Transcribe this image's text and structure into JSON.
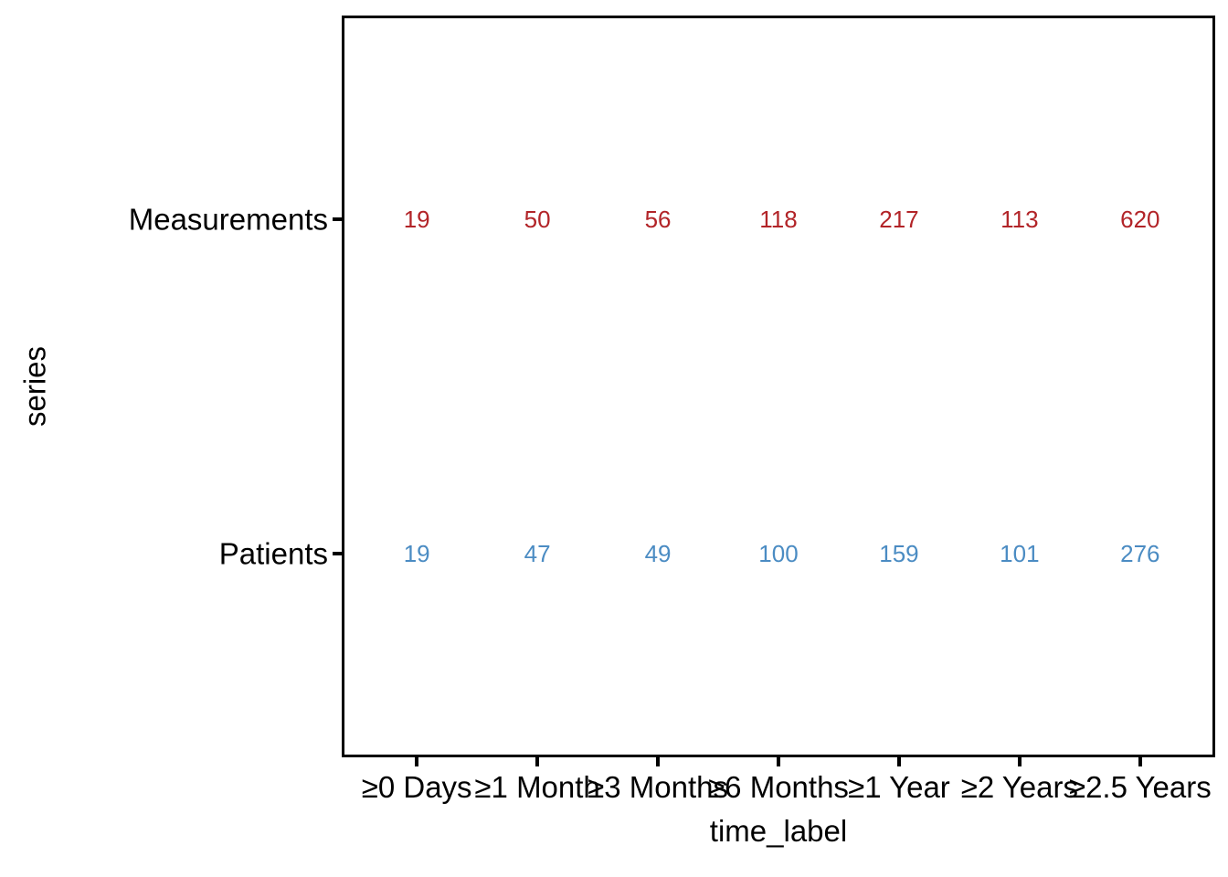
{
  "chart_data": {
    "type": "scatter",
    "subtype": "text-count-plot",
    "title": "",
    "xlabel": "time_label",
    "ylabel": "series",
    "categories": [
      "≥0 Days",
      "≥1 Month",
      "≥3 Months",
      "≥6 Months",
      "≥1 Year",
      "≥2 Years",
      "≥2.5 Years"
    ],
    "series": [
      {
        "name": "Measurements",
        "color": "#B22428",
        "values": [
          19,
          50,
          56,
          118,
          217,
          113,
          620
        ]
      },
      {
        "name": "Patients",
        "color": "#4B8CC3",
        "values": [
          19,
          47,
          49,
          100,
          159,
          101,
          276
        ]
      }
    ],
    "legend": "none",
    "grid": false,
    "panel_border_color": "#000000",
    "axis_text_color": "#000000",
    "background_color": "#ffffff"
  }
}
